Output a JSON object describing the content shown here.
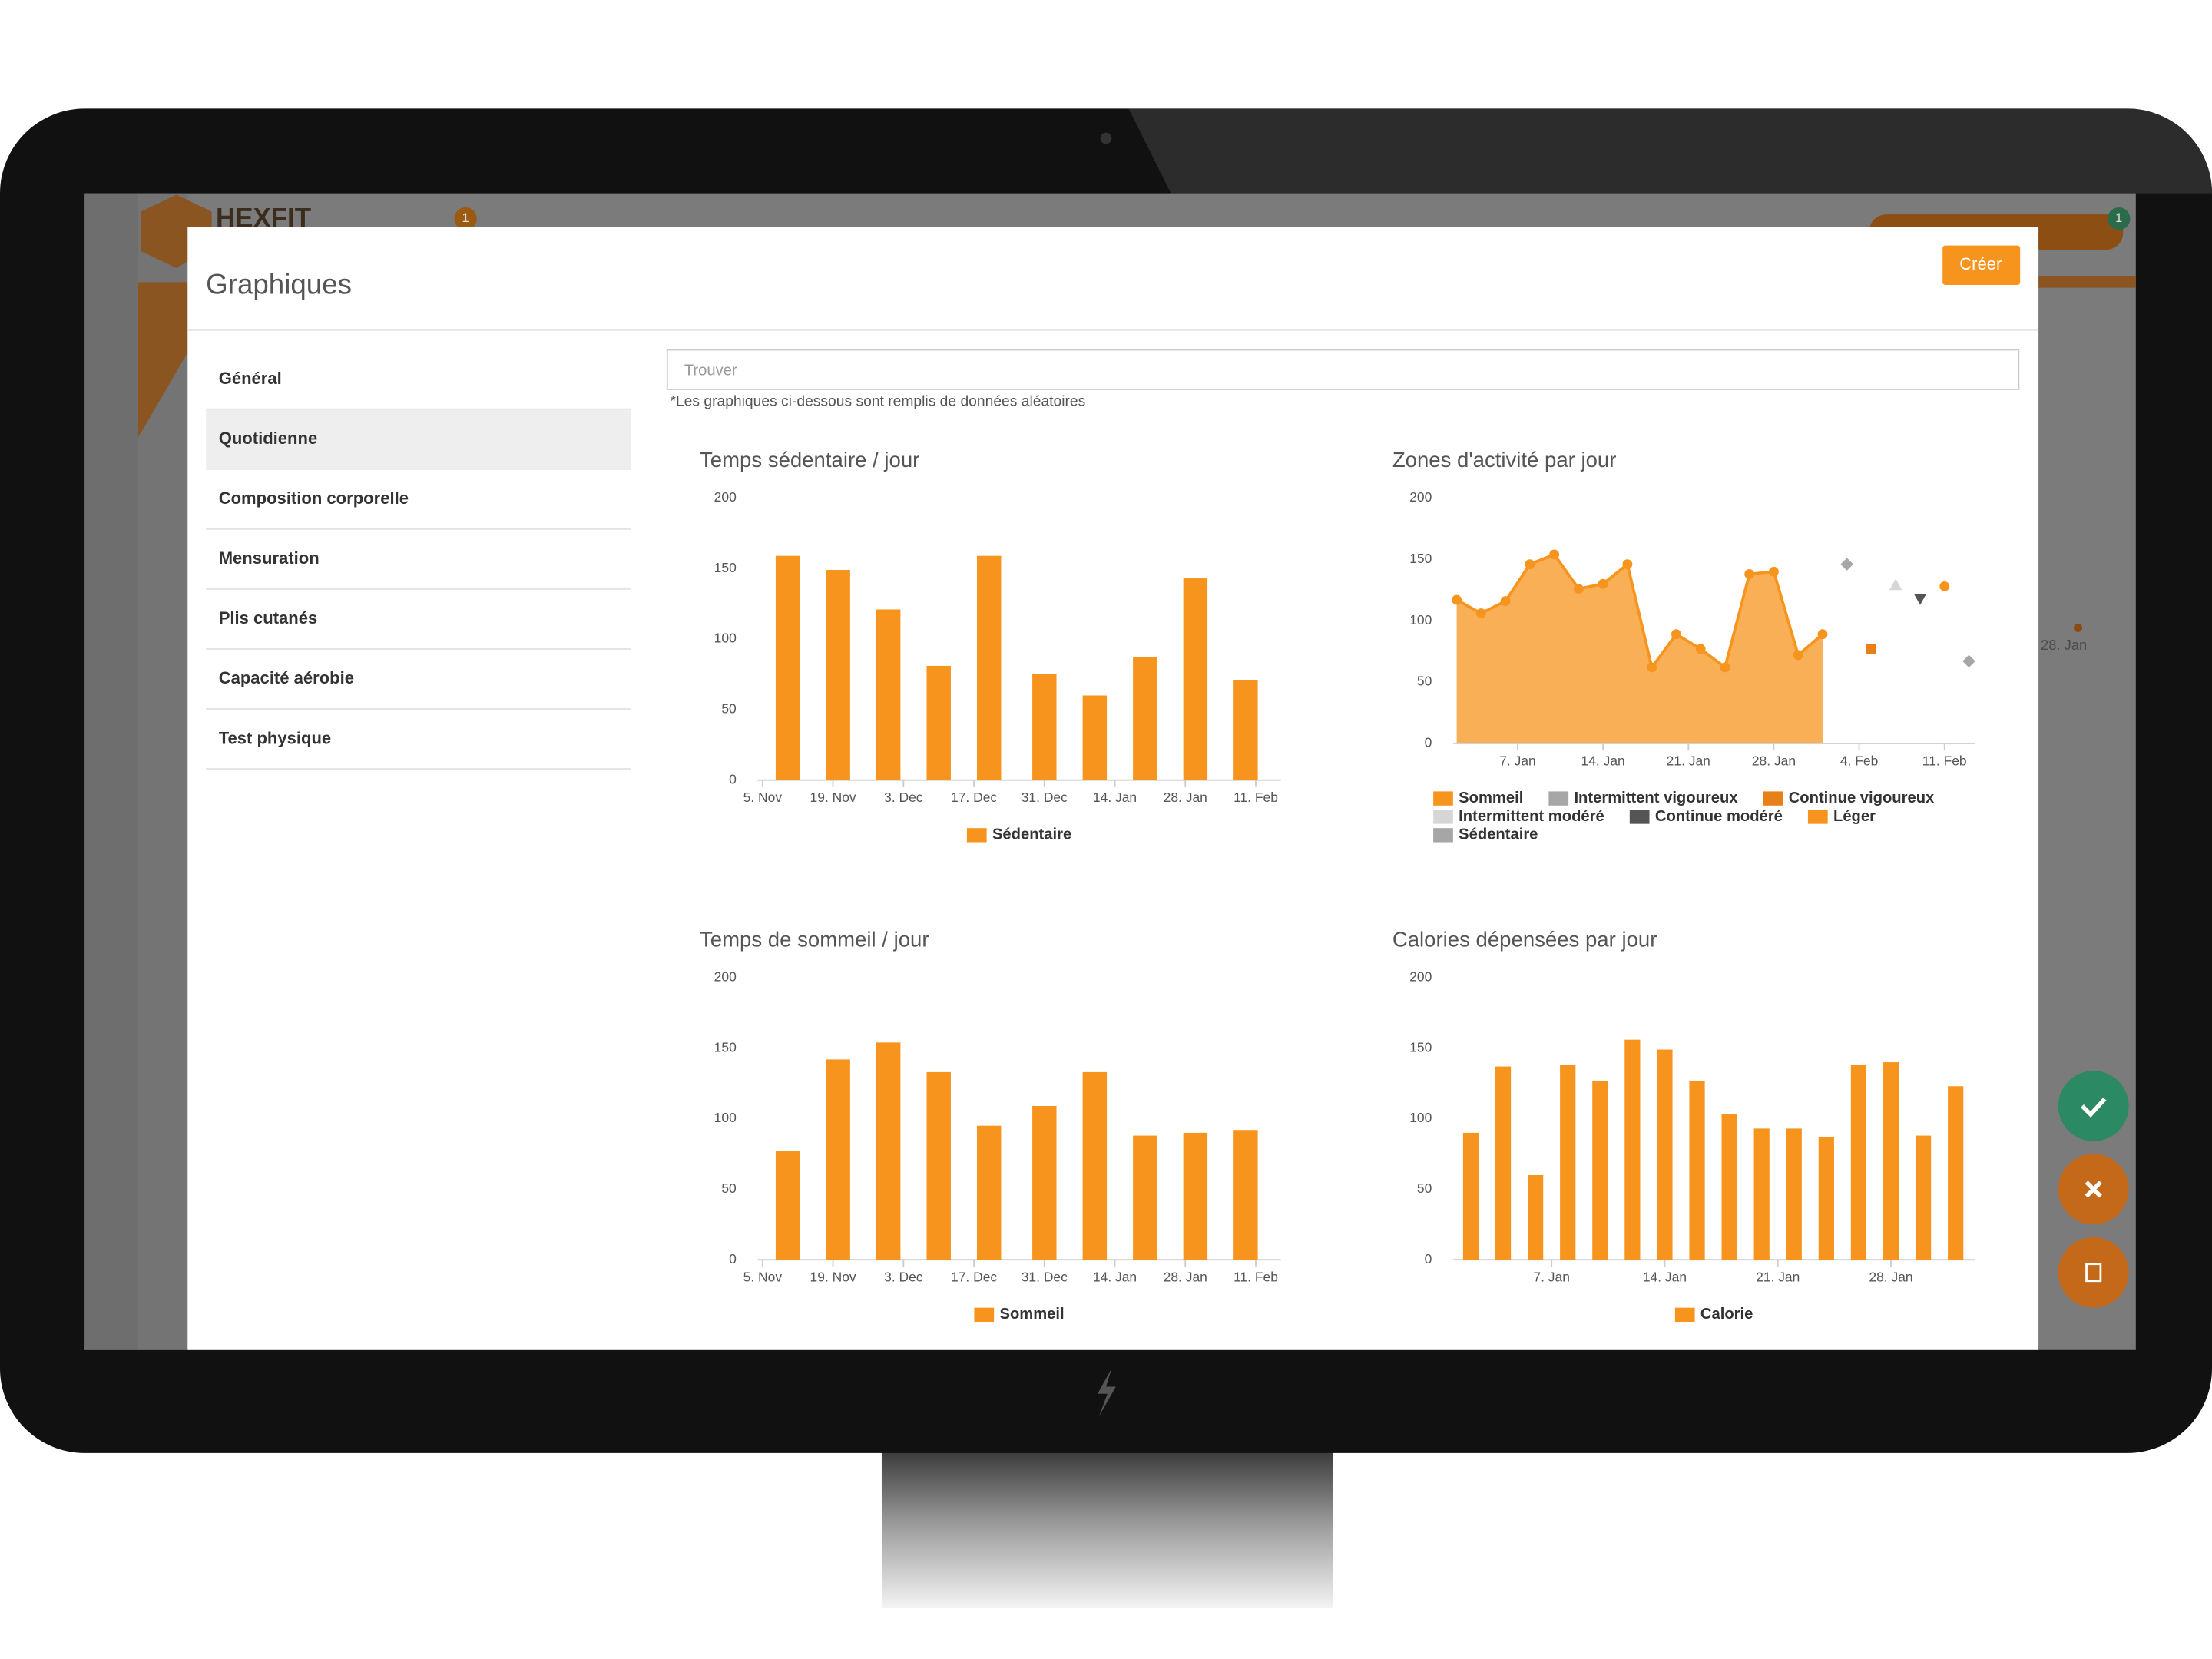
{
  "app": {
    "logo": "HEXFIT",
    "badges": [
      "1",
      "1"
    ],
    "background_label": "28. Jan"
  },
  "modal": {
    "title": "Graphiques",
    "button": "Créer",
    "menu": [
      "Général",
      "Quotidienne",
      "Composition corporelle",
      "Mensuration",
      "Plis cutanés",
      "Capacité aérobie",
      "Test physique"
    ],
    "active_index": 1,
    "search_placeholder": "Trouver",
    "note": "*Les graphiques ci-dessous sont remplis de données aléatoires"
  },
  "chart_data": [
    {
      "type": "bar",
      "title": "Temps sédentaire / jour",
      "x": [
        5,
        15,
        25,
        35,
        45,
        56,
        66,
        76,
        86,
        96
      ],
      "series": [
        {
          "name": "Sédentaire",
          "color": "#f7941d",
          "values": [
            159,
            149,
            121,
            81,
            159,
            75,
            60,
            87,
            143,
            71
          ]
        }
      ],
      "xlim": [
        -1,
        103
      ],
      "xticks": [
        {
          "value": 0,
          "label": "5. Nov"
        },
        {
          "value": 14,
          "label": "19. Nov"
        },
        {
          "value": 28,
          "label": "3. Dec"
        },
        {
          "value": 42,
          "label": "17. Dec"
        },
        {
          "value": 56,
          "label": "31. Dec"
        },
        {
          "value": 70,
          "label": "14. Jan"
        },
        {
          "value": 84,
          "label": "28. Jan"
        },
        {
          "value": 98,
          "label": "11. Feb"
        }
      ],
      "ylim": [
        0,
        200
      ],
      "yticks": [
        0,
        50,
        100,
        150,
        200
      ],
      "grid": false
    },
    {
      "type": "area",
      "title": "Zones d'activité par jour",
      "x": [
        -5,
        -3,
        -1,
        1,
        3,
        5,
        7,
        9,
        11,
        13,
        15,
        17,
        19,
        21,
        23,
        25,
        27,
        29,
        31,
        33,
        35,
        37
      ],
      "series": [
        {
          "name": "Sommeil",
          "type": "area",
          "marker": "circle",
          "color": "#f7941d",
          "values": [
            117,
            106,
            116,
            146,
            154,
            126,
            130,
            146,
            62,
            89,
            77,
            62,
            138,
            140,
            72,
            89,
            null,
            null,
            null,
            null,
            null,
            null
          ]
        },
        {
          "name": "Intermittent vigoureux",
          "type": "scatter",
          "marker": "diamond",
          "color": "#a6a6a6",
          "values": [
            null,
            null,
            null,
            null,
            null,
            null,
            null,
            null,
            null,
            null,
            null,
            null,
            null,
            null,
            null,
            null,
            146,
            null,
            null,
            null,
            null,
            null
          ]
        },
        {
          "name": "Continue vigoureux",
          "type": "scatter",
          "marker": "square",
          "color": "#e8801a",
          "values": [
            null,
            null,
            null,
            null,
            null,
            null,
            null,
            null,
            null,
            null,
            null,
            null,
            null,
            null,
            null,
            null,
            null,
            77,
            null,
            null,
            null,
            null
          ]
        },
        {
          "name": "Intermittent modéré",
          "type": "scatter",
          "marker": "triangle",
          "color": "#d6d6d6",
          "values": [
            null,
            null,
            null,
            null,
            null,
            null,
            null,
            null,
            null,
            null,
            null,
            null,
            null,
            null,
            null,
            null,
            null,
            null,
            129,
            null,
            null,
            null
          ]
        },
        {
          "name": "Continue modéré",
          "type": "scatter",
          "marker": "triangle-down",
          "color": "#555555",
          "values": [
            null,
            null,
            null,
            null,
            null,
            null,
            null,
            null,
            null,
            null,
            null,
            null,
            null,
            null,
            null,
            null,
            null,
            null,
            null,
            118,
            null,
            null
          ]
        },
        {
          "name": "Léger",
          "type": "scatter",
          "marker": "circle",
          "color": "#f7941d",
          "values": [
            null,
            null,
            null,
            null,
            null,
            null,
            null,
            null,
            null,
            null,
            null,
            null,
            null,
            null,
            null,
            null,
            null,
            null,
            null,
            null,
            128,
            null
          ]
        },
        {
          "name": "Sédentaire",
          "type": "scatter",
          "marker": "diamond",
          "color": "#a6a6a6",
          "values": [
            null,
            null,
            null,
            null,
            null,
            null,
            null,
            null,
            null,
            null,
            null,
            null,
            null,
            null,
            null,
            null,
            null,
            null,
            null,
            null,
            null,
            67
          ]
        }
      ],
      "xlim": [
        -5.3,
        37.5
      ],
      "xticks": [
        {
          "value": 0,
          "label": "7. Jan"
        },
        {
          "value": 7,
          "label": "14. Jan"
        },
        {
          "value": 14,
          "label": "21. Jan"
        },
        {
          "value": 21,
          "label": "28. Jan"
        },
        {
          "value": 28,
          "label": "4. Feb"
        },
        {
          "value": 35,
          "label": "11. Feb"
        }
      ],
      "ylim": [
        0,
        200
      ],
      "yticks": [
        0,
        50,
        100,
        150,
        200
      ],
      "grid": false
    },
    {
      "type": "bar",
      "title": "Temps de sommeil / jour",
      "x": [
        5,
        15,
        25,
        35,
        45,
        56,
        66,
        76,
        86,
        96
      ],
      "series": [
        {
          "name": "Sommeil",
          "color": "#f7941d",
          "values": [
            77,
            142,
            154,
            133,
            95,
            109,
            133,
            88,
            90,
            92
          ]
        }
      ],
      "xlim": [
        -1,
        103
      ],
      "xticks": [
        {
          "value": 0,
          "label": "5. Nov"
        },
        {
          "value": 14,
          "label": "19. Nov"
        },
        {
          "value": 28,
          "label": "3. Dec"
        },
        {
          "value": 42,
          "label": "17. Dec"
        },
        {
          "value": 56,
          "label": "31. Dec"
        },
        {
          "value": 70,
          "label": "14. Jan"
        },
        {
          "value": 84,
          "label": "28. Jan"
        },
        {
          "value": 98,
          "label": "11. Feb"
        }
      ],
      "ylim": [
        0,
        200
      ],
      "yticks": [
        0,
        50,
        100,
        150,
        200
      ],
      "grid": false
    },
    {
      "type": "bar",
      "title": "Calories dépensées par jour",
      "x": [
        -5,
        -3,
        -1,
        1,
        3,
        5,
        7,
        9,
        11,
        13,
        15,
        17,
        19,
        21,
        23,
        25
      ],
      "series": [
        {
          "name": "Calorie",
          "color": "#f7941d",
          "values": [
            90,
            137,
            60,
            138,
            127,
            156,
            149,
            127,
            103,
            93,
            93,
            87,
            138,
            140,
            88,
            123
          ]
        }
      ],
      "xlim": [
        -6.1,
        26.2
      ],
      "xticks": [
        {
          "value": 0,
          "label": "7. Jan"
        },
        {
          "value": 7,
          "label": "14. Jan"
        },
        {
          "value": 14,
          "label": "21. Jan"
        },
        {
          "value": 21,
          "label": "28. Jan"
        }
      ],
      "ylim": [
        0,
        200
      ],
      "yticks": [
        0,
        50,
        100,
        150,
        200
      ],
      "grid": false
    }
  ]
}
